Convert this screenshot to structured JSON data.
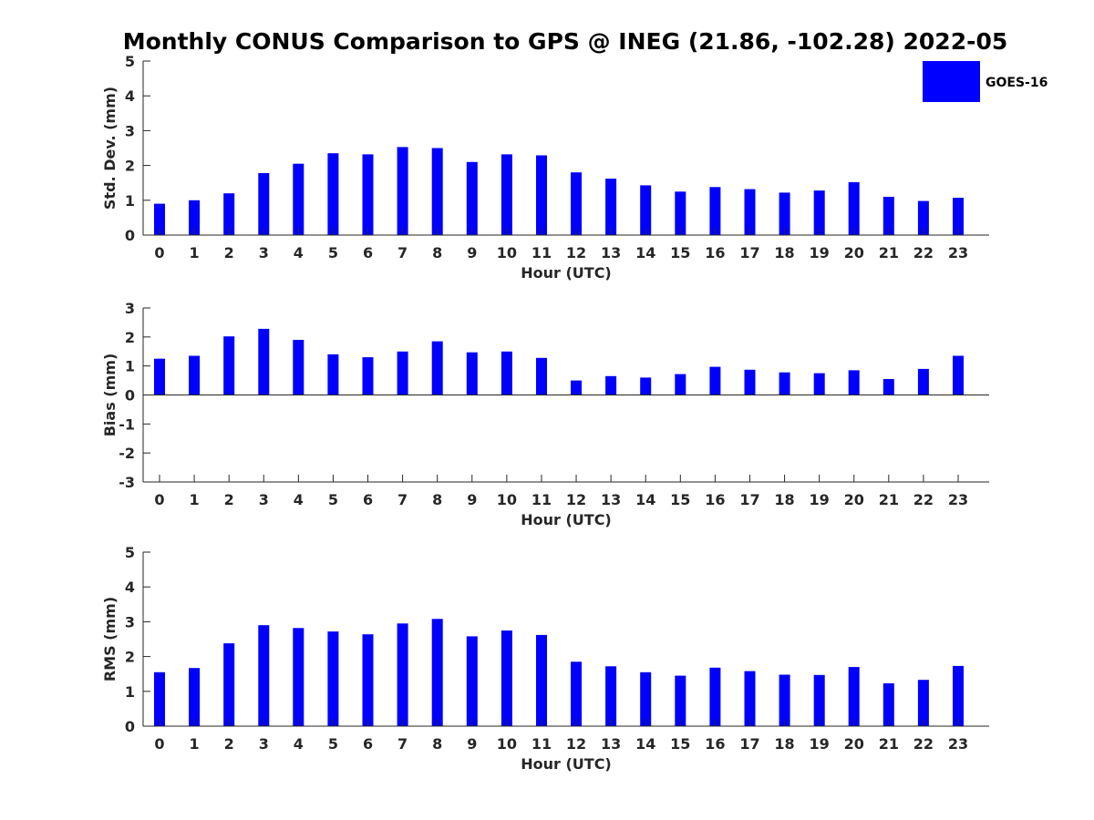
{
  "figure": {
    "title": "Monthly CONUS Comparison to GPS @ INEG (21.86, -102.28) 2022-05"
  },
  "legend": {
    "label": "GOES-16",
    "color": "#0000ff",
    "placement": "top-right"
  },
  "chart_data": [
    {
      "type": "bar",
      "ylabel": "Std. Dev. (mm)",
      "xlabel": "Hour (UTC)",
      "ylim": [
        0,
        5
      ],
      "yticks": [
        "0",
        "1",
        "2",
        "3",
        "4",
        "5"
      ],
      "categories": [
        "0",
        "1",
        "2",
        "3",
        "4",
        "5",
        "6",
        "7",
        "8",
        "9",
        "10",
        "11",
        "12",
        "13",
        "14",
        "15",
        "16",
        "17",
        "18",
        "19",
        "20",
        "21",
        "22",
        "23"
      ],
      "series": [
        {
          "name": "GOES-16",
          "color": "#0000ff",
          "values": [
            0.9,
            1.0,
            1.2,
            1.78,
            2.05,
            2.35,
            2.32,
            2.53,
            2.5,
            2.1,
            2.32,
            2.29,
            1.8,
            1.62,
            1.43,
            1.25,
            1.38,
            1.32,
            1.22,
            1.28,
            1.52,
            1.1,
            0.98,
            1.07
          ]
        }
      ],
      "grid": false
    },
    {
      "type": "bar",
      "ylabel": "Bias (mm)",
      "xlabel": "Hour (UTC)",
      "ylim": [
        -3,
        3
      ],
      "yticks": [
        "-3",
        "-2",
        "-1",
        "0",
        "1",
        "2",
        "3"
      ],
      "categories": [
        "0",
        "1",
        "2",
        "3",
        "4",
        "5",
        "6",
        "7",
        "8",
        "9",
        "10",
        "11",
        "12",
        "13",
        "14",
        "15",
        "16",
        "17",
        "18",
        "19",
        "20",
        "21",
        "22",
        "23"
      ],
      "series": [
        {
          "name": "GOES-16",
          "color": "#0000ff",
          "values": [
            1.25,
            1.35,
            2.02,
            2.28,
            1.9,
            1.4,
            1.3,
            1.5,
            1.85,
            1.47,
            1.5,
            1.28,
            0.5,
            0.65,
            0.6,
            0.72,
            0.97,
            0.87,
            0.78,
            0.75,
            0.85,
            0.55,
            0.9,
            1.35
          ]
        }
      ],
      "grid": false
    },
    {
      "type": "bar",
      "ylabel": "RMS (mm)",
      "xlabel": "Hour (UTC)",
      "ylim": [
        0,
        5
      ],
      "yticks": [
        "0",
        "1",
        "2",
        "3",
        "4",
        "5"
      ],
      "categories": [
        "0",
        "1",
        "2",
        "3",
        "4",
        "5",
        "6",
        "7",
        "8",
        "9",
        "10",
        "11",
        "12",
        "13",
        "14",
        "15",
        "16",
        "17",
        "18",
        "19",
        "20",
        "21",
        "22",
        "23"
      ],
      "series": [
        {
          "name": "GOES-16",
          "color": "#0000ff",
          "values": [
            1.55,
            1.67,
            2.38,
            2.9,
            2.82,
            2.72,
            2.64,
            2.95,
            3.08,
            2.58,
            2.75,
            2.62,
            1.85,
            1.72,
            1.55,
            1.45,
            1.68,
            1.58,
            1.48,
            1.47,
            1.7,
            1.23,
            1.33,
            1.73
          ]
        }
      ],
      "grid": false
    }
  ]
}
